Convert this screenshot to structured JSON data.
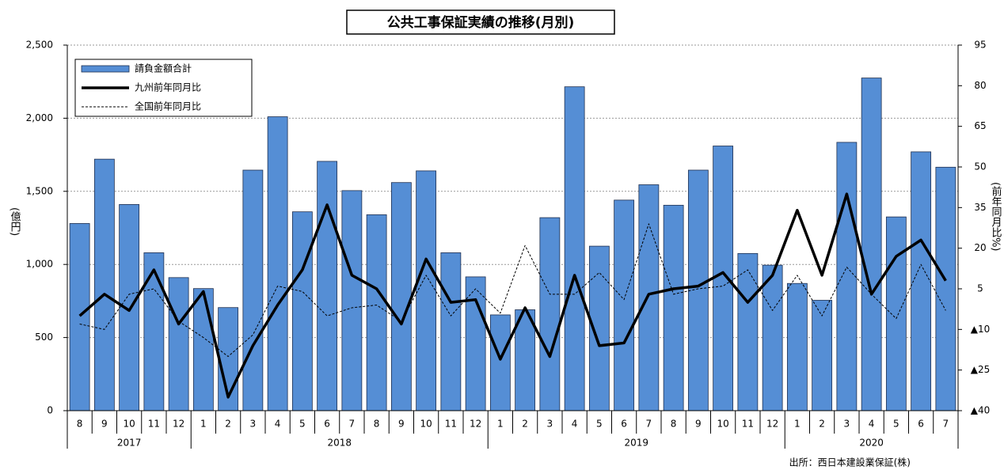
{
  "chart_data": {
    "type": "bar-line",
    "title": "公共工事保証実績の推移(月別)",
    "y_label": "(億円)",
    "y2_label": "(前年同月比%)",
    "source": "出所：西日本建設業保証(株)",
    "categories": [
      "8",
      "9",
      "10",
      "11",
      "12",
      "1",
      "2",
      "3",
      "4",
      "5",
      "6",
      "7",
      "8",
      "9",
      "10",
      "11",
      "12",
      "1",
      "2",
      "3",
      "4",
      "5",
      "6",
      "7",
      "8",
      "9",
      "10",
      "11",
      "12",
      "1",
      "2",
      "3",
      "4",
      "5",
      "6",
      "7"
    ],
    "years": [
      "2017",
      "2018",
      "2019",
      "2020"
    ],
    "series": [
      {
        "name": "請負金額合計",
        "type": "bar",
        "color": "#558ed5",
        "values": [
          1280,
          1720,
          1410,
          1080,
          910,
          835,
          705,
          1645,
          2010,
          1360,
          1705,
          1505,
          1340,
          1560,
          1640,
          1080,
          915,
          655,
          690,
          1320,
          2215,
          1125,
          1440,
          1545,
          1405,
          1645,
          1810,
          1075,
          995,
          870,
          755,
          1835,
          2275,
          1325,
          1770,
          1665
        ]
      },
      {
        "name": "九州前年同月比",
        "type": "line",
        "axis": "y2",
        "color": "#000000",
        "line_style": "solid",
        "values": [
          -5,
          3,
          -3,
          12,
          -8,
          4,
          -35,
          -16,
          -1,
          12,
          36,
          10,
          5,
          -8,
          16,
          0,
          1,
          -21,
          -2,
          -20,
          10,
          -16,
          -15,
          3,
          5,
          6,
          11,
          0,
          10,
          34,
          10,
          40,
          3,
          17,
          23,
          8
        ]
      },
      {
        "name": "全国前年同月比",
        "type": "line",
        "axis": "y2",
        "color": "#000000",
        "line_style": "dashed",
        "values": [
          -8,
          -10,
          3,
          5,
          -7,
          -13,
          -20,
          -12,
          6,
          4,
          -5,
          -2,
          -1,
          -7,
          10,
          -5,
          5,
          -4,
          21,
          3,
          3,
          11,
          1,
          29,
          3,
          5,
          6,
          12,
          -3,
          10,
          -5,
          13,
          3,
          -6,
          14,
          -3
        ]
      }
    ],
    "ylim": [
      0,
      2500
    ],
    "yticks": [
      0,
      500,
      {
        "value": 1000,
        "label": "1,000"
      },
      {
        "value": 1500,
        "label": "1,500"
      },
      {
        "value": 2000,
        "label": "2,000"
      },
      {
        "value": 2500,
        "label": "2,500"
      }
    ],
    "y2lim": [
      -40,
      95
    ],
    "y2ticks": [
      {
        "value": -40,
        "label": "▲40"
      },
      {
        "value": -25,
        "label": "▲25"
      },
      {
        "value": -10,
        "label": "▲10"
      },
      5,
      20,
      35,
      50,
      65,
      80,
      95
    ],
    "grid": true,
    "legend": "upper left"
  }
}
